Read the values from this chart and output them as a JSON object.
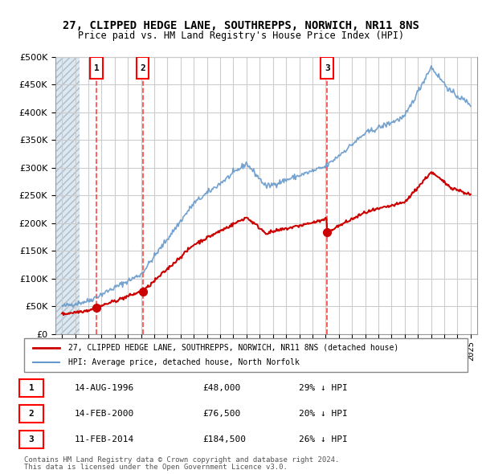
{
  "title": "27, CLIPPED HEDGE LANE, SOUTHREPPS, NORWICH, NR11 8NS",
  "subtitle": "Price paid vs. HM Land Registry's House Price Index (HPI)",
  "legend_line1": "27, CLIPPED HEDGE LANE, SOUTHREPPS, NORWICH, NR11 8NS (detached house)",
  "legend_line2": "HPI: Average price, detached house, North Norfolk",
  "footer1": "Contains HM Land Registry data © Crown copyright and database right 2024.",
  "footer2": "This data is licensed under the Open Government Licence v3.0.",
  "sales": [
    {
      "num": 1,
      "date": "14-AUG-1996",
      "price": 48000,
      "pct": "29%",
      "dir": "↓",
      "year": 1996.62
    },
    {
      "num": 2,
      "date": "14-FEB-2000",
      "price": 76500,
      "pct": "20%",
      "dir": "↓",
      "year": 2000.12
    },
    {
      "num": 3,
      "date": "11-FEB-2014",
      "price": 184500,
      "pct": "26%",
      "dir": "↓",
      "year": 2014.12
    }
  ],
  "hpi_color": "#6699cc",
  "price_color": "#cc0000",
  "grid_color": "#cccccc",
  "dashed_color": "#ff4444",
  "ylim": [
    0,
    500000
  ],
  "yticks": [
    0,
    50000,
    100000,
    150000,
    200000,
    250000,
    300000,
    350000,
    400000,
    450000,
    500000
  ],
  "xlim_start": 1993.5,
  "xlim_end": 2025.5,
  "hatch_end": 1995.3
}
